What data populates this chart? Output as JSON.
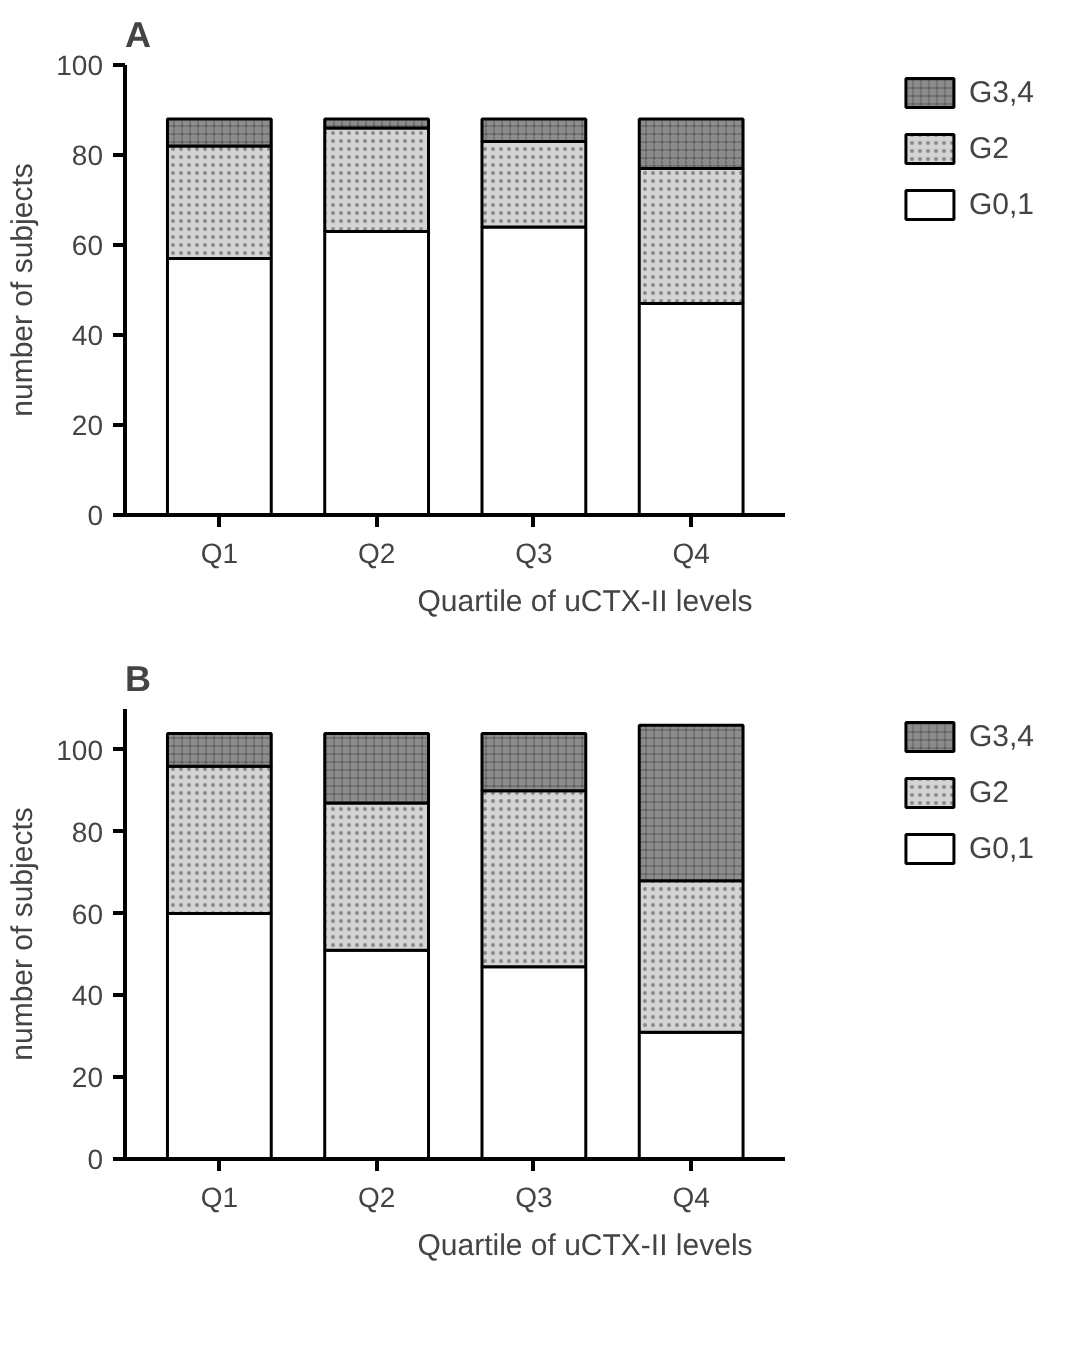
{
  "chart_data": [
    {
      "type": "bar",
      "title": "A",
      "stacked": true,
      "xlabel": "Quartile of uCTX-II levels",
      "ylabel": "number of subjects",
      "categories": [
        "Q1",
        "Q2",
        "Q3",
        "Q4"
      ],
      "ylim": [
        0,
        100
      ],
      "yticks": [
        0,
        20,
        40,
        60,
        80,
        100
      ],
      "grid": false,
      "legend": "top right",
      "series": [
        {
          "name": "G0,1",
          "color": "#ffffff",
          "values": [
            57,
            63,
            64,
            47
          ]
        },
        {
          "name": "G2",
          "color": "#d4d4d4",
          "values": [
            25,
            23,
            19,
            30
          ]
        },
        {
          "name": "G3,4",
          "color": "#8c8c8c",
          "values": [
            6,
            2,
            5,
            11
          ]
        }
      ]
    },
    {
      "type": "bar",
      "title": "B",
      "stacked": true,
      "xlabel": "Quartile of uCTX-II levels",
      "ylabel": "number of subjects",
      "categories": [
        "Q1",
        "Q2",
        "Q3",
        "Q4"
      ],
      "ylim": [
        0,
        110
      ],
      "yticks": [
        0,
        20,
        40,
        60,
        80,
        100
      ],
      "grid": false,
      "legend": "top right",
      "series": [
        {
          "name": "G0,1",
          "color": "#ffffff",
          "values": [
            60,
            51,
            47,
            31
          ]
        },
        {
          "name": "G2",
          "color": "#d4d4d4",
          "values": [
            36,
            36,
            43,
            37
          ]
        },
        {
          "name": "G3,4",
          "color": "#8c8c8c",
          "values": [
            8,
            17,
            14,
            38
          ]
        }
      ]
    }
  ]
}
